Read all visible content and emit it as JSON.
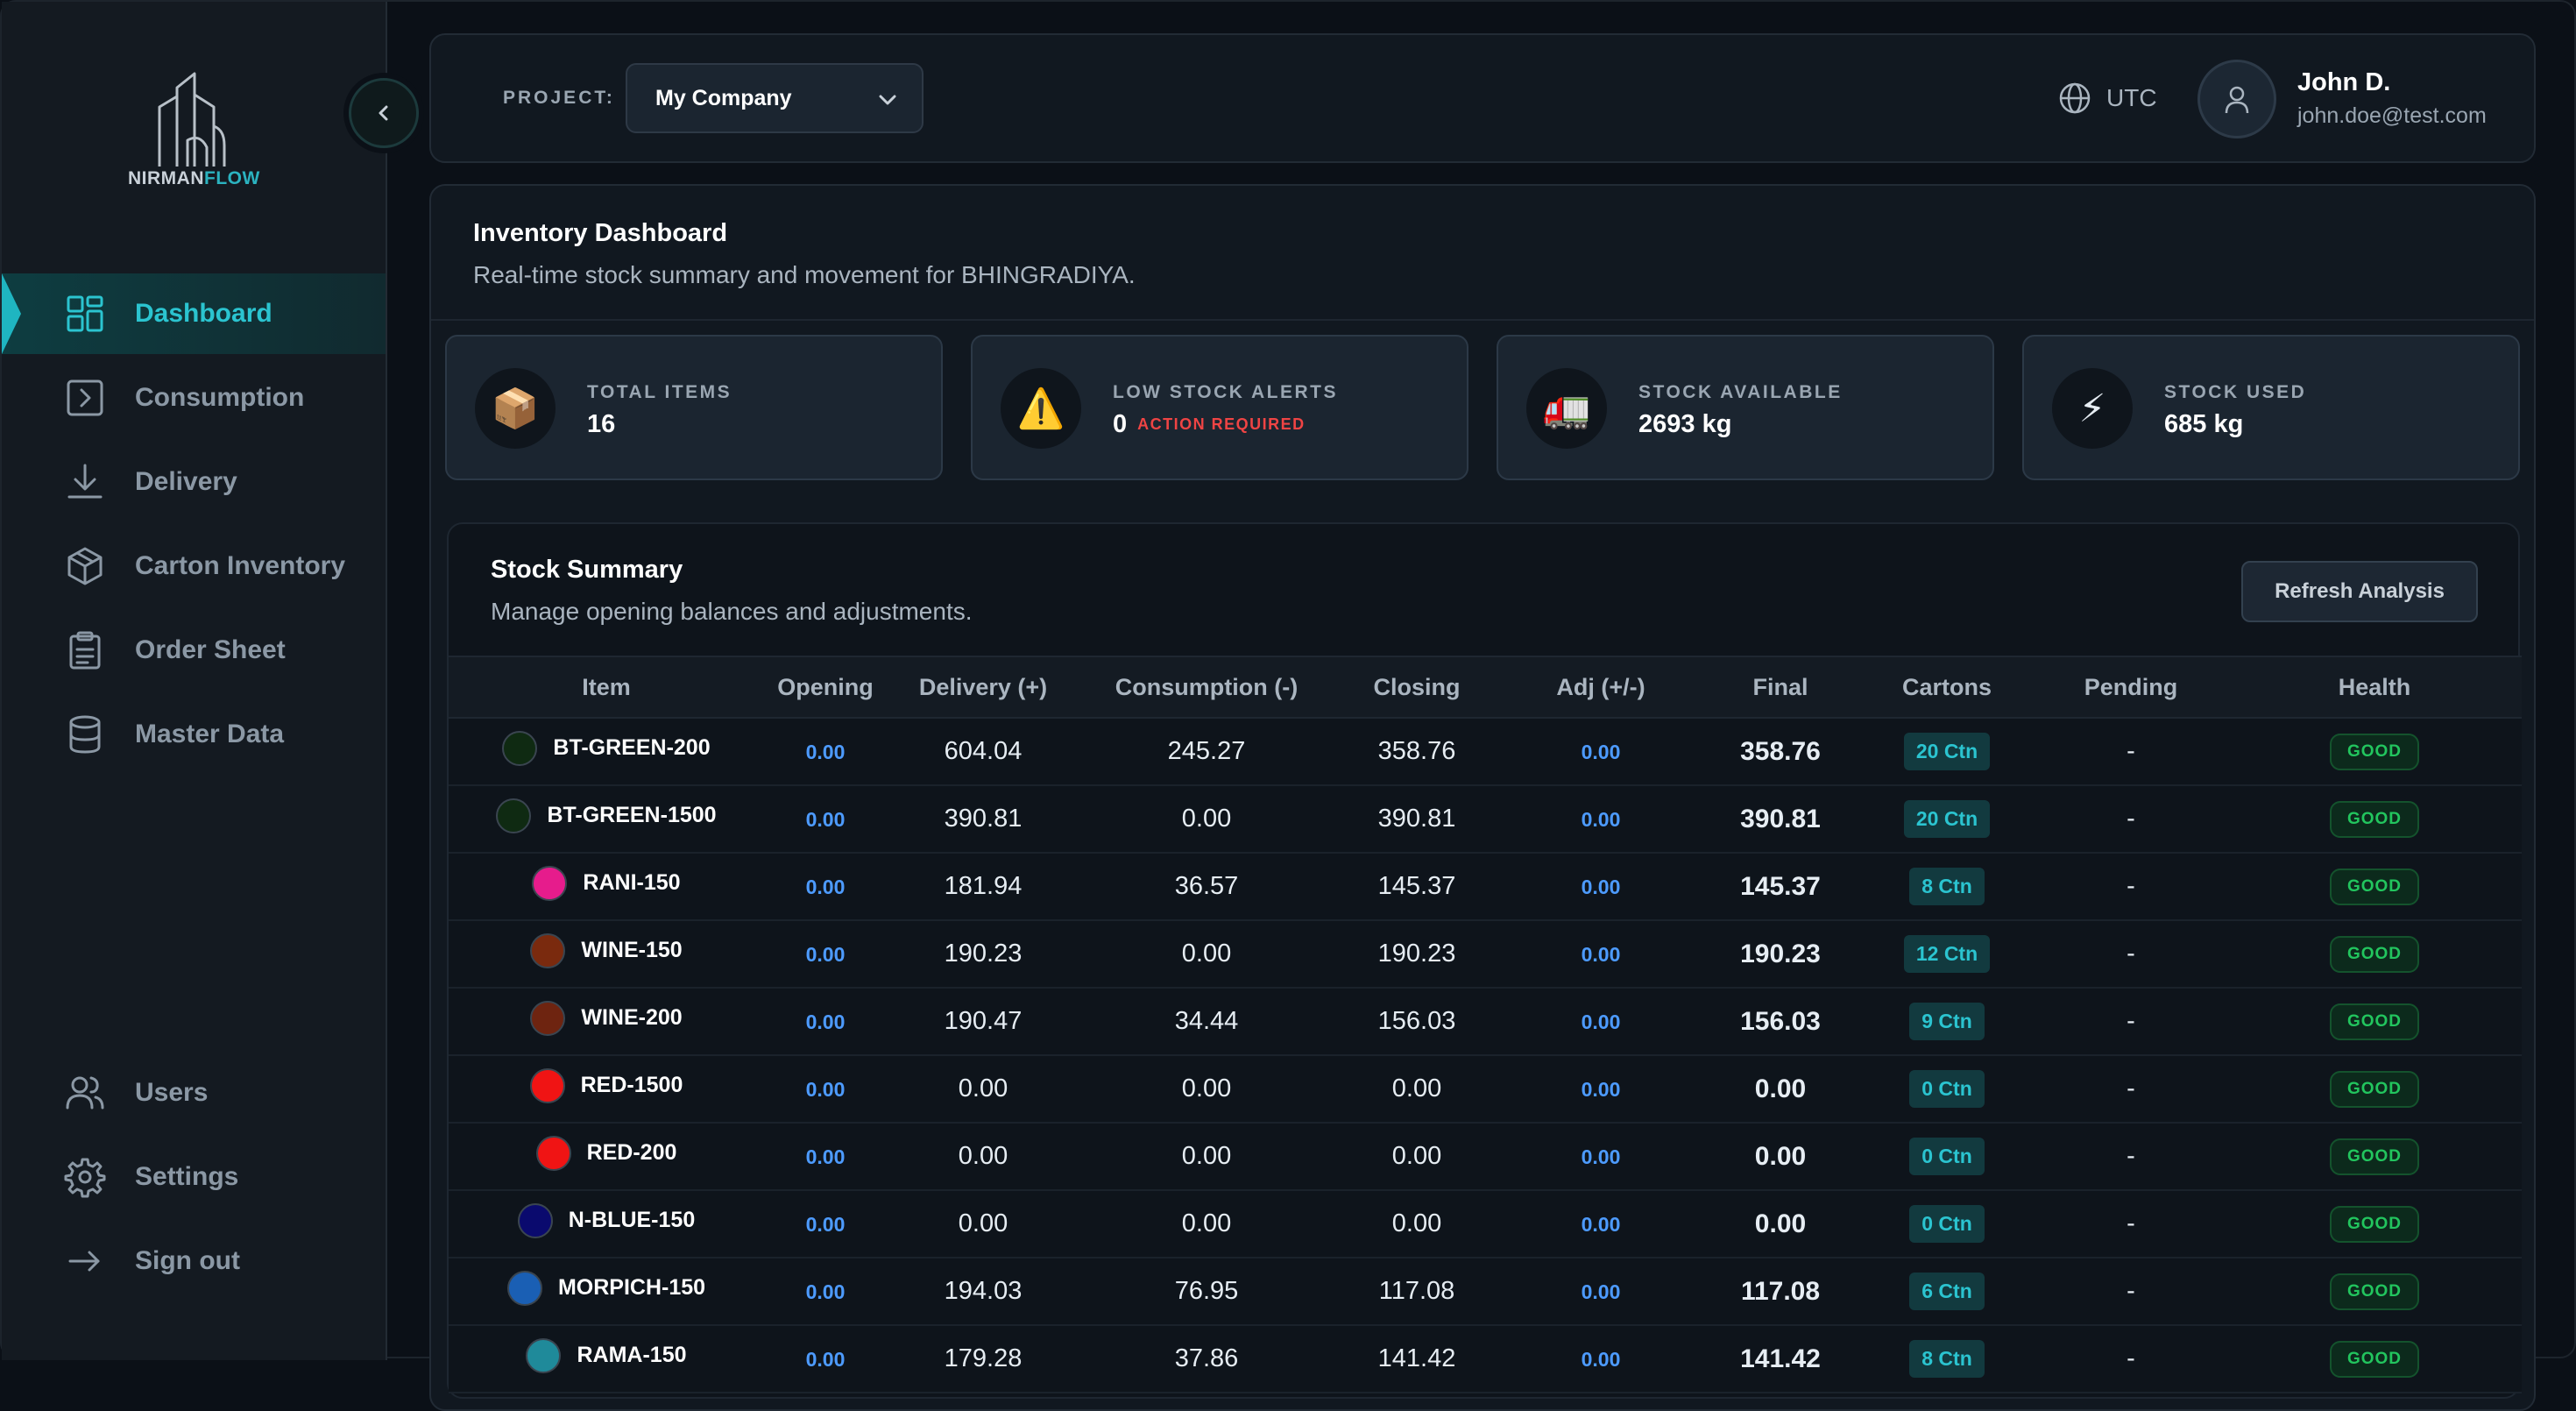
{
  "brand": {
    "name_part1": "NIRMAN",
    "name_part2": "FLOW"
  },
  "sidebar": {
    "items": [
      {
        "label": "Dashboard",
        "icon": "grid-icon",
        "active": true
      },
      {
        "label": "Consumption",
        "icon": "arrow-right-box-icon"
      },
      {
        "label": "Delivery",
        "icon": "download-icon"
      },
      {
        "label": "Carton Inventory",
        "icon": "box-icon"
      },
      {
        "label": "Order Sheet",
        "icon": "clipboard-icon"
      },
      {
        "label": "Master Data",
        "icon": "database-icon"
      }
    ],
    "bottom_items": [
      {
        "label": "Users",
        "icon": "users-icon"
      },
      {
        "label": "Settings",
        "icon": "gear-icon"
      },
      {
        "label": "Sign out",
        "icon": "sign-out-arrow-icon"
      }
    ]
  },
  "topbar": {
    "project_label": "PROJECT:",
    "project_value": "My Company",
    "timezone": "UTC",
    "user_name": "John D.",
    "user_email": "john.doe@test.com"
  },
  "dashboard": {
    "title": "Inventory Dashboard",
    "subtitle": "Real-time stock summary and movement for BHINGRADIYA."
  },
  "stats": [
    {
      "label": "TOTAL ITEMS",
      "value": "16",
      "icon": "📦"
    },
    {
      "label": "LOW STOCK ALERTS",
      "value": "0",
      "alert": "ACTION REQUIRED",
      "icon": "⚠️"
    },
    {
      "label": "STOCK AVAILABLE",
      "value": "2693 kg",
      "icon": "🚛"
    },
    {
      "label": "STOCK USED",
      "value": "685 kg",
      "icon": "⚡"
    }
  ],
  "summary": {
    "title": "Stock Summary",
    "subtitle": "Manage opening balances and adjustments.",
    "refresh_label": "Refresh Analysis",
    "columns": [
      "Item",
      "Opening",
      "Delivery (+)",
      "Consumption (-)",
      "Closing",
      "Adj (+/-)",
      "Final",
      "Cartons",
      "Pending",
      "Health"
    ],
    "rows": [
      {
        "item": "BT-GREEN-200",
        "color": "#0f2a12",
        "opening": "0.00",
        "delivery": "604.04",
        "consumption": "245.27",
        "closing": "358.76",
        "adj": "0.00",
        "final": "358.76",
        "cartons": "20 Ctn",
        "pending": "-",
        "health": "GOOD"
      },
      {
        "item": "BT-GREEN-1500",
        "color": "#0f2a12",
        "opening": "0.00",
        "delivery": "390.81",
        "consumption": "0.00",
        "closing": "390.81",
        "adj": "0.00",
        "final": "390.81",
        "cartons": "20 Ctn",
        "pending": "-",
        "health": "GOOD"
      },
      {
        "item": "RANI-150",
        "color": "#e61c8c",
        "opening": "0.00",
        "delivery": "181.94",
        "consumption": "36.57",
        "closing": "145.37",
        "adj": "0.00",
        "final": "145.37",
        "cartons": "8 Ctn",
        "pending": "-",
        "health": "GOOD"
      },
      {
        "item": "WINE-150",
        "color": "#7a2a0e",
        "opening": "0.00",
        "delivery": "190.23",
        "consumption": "0.00",
        "closing": "190.23",
        "adj": "0.00",
        "final": "190.23",
        "cartons": "12 Ctn",
        "pending": "-",
        "health": "GOOD"
      },
      {
        "item": "WINE-200",
        "color": "#6e2410",
        "opening": "0.00",
        "delivery": "190.47",
        "consumption": "34.44",
        "closing": "156.03",
        "adj": "0.00",
        "final": "156.03",
        "cartons": "9 Ctn",
        "pending": "-",
        "health": "GOOD"
      },
      {
        "item": "RED-1500",
        "color": "#f01414",
        "opening": "0.00",
        "delivery": "0.00",
        "consumption": "0.00",
        "closing": "0.00",
        "adj": "0.00",
        "final": "0.00",
        "cartons": "0 Ctn",
        "pending": "-",
        "health": "GOOD"
      },
      {
        "item": "RED-200",
        "color": "#f01414",
        "opening": "0.00",
        "delivery": "0.00",
        "consumption": "0.00",
        "closing": "0.00",
        "adj": "0.00",
        "final": "0.00",
        "cartons": "0 Ctn",
        "pending": "-",
        "health": "GOOD"
      },
      {
        "item": "N-BLUE-150",
        "color": "#0a0a6e",
        "opening": "0.00",
        "delivery": "0.00",
        "consumption": "0.00",
        "closing": "0.00",
        "adj": "0.00",
        "final": "0.00",
        "cartons": "0 Ctn",
        "pending": "-",
        "health": "GOOD"
      },
      {
        "item": "MORPICH-150",
        "color": "#1a5fb4",
        "opening": "0.00",
        "delivery": "194.03",
        "consumption": "76.95",
        "closing": "117.08",
        "adj": "0.00",
        "final": "117.08",
        "cartons": "6 Ctn",
        "pending": "-",
        "health": "GOOD"
      },
      {
        "item": "RAMA-150",
        "color": "#1f8a9a",
        "opening": "0.00",
        "delivery": "179.28",
        "consumption": "37.86",
        "closing": "141.42",
        "adj": "0.00",
        "final": "141.42",
        "cartons": "8 Ctn",
        "pending": "-",
        "health": "GOOD"
      }
    ]
  }
}
